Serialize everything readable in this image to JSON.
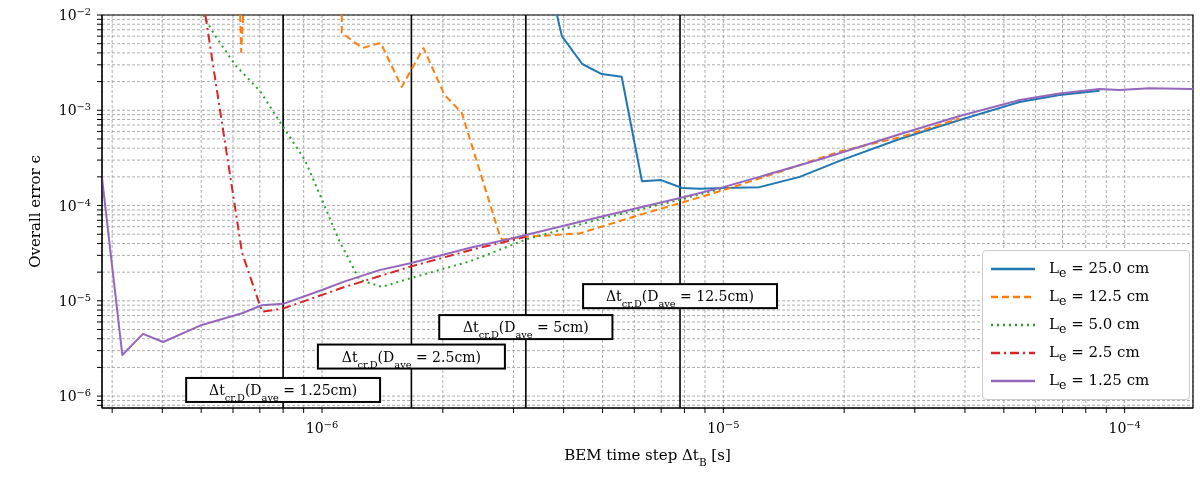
{
  "chart_data": {
    "type": "line",
    "xlabel": "BEM time step Δt$_{B}$ [s]",
    "ylabel": "Overall error ϵ",
    "log": "xy",
    "grid": true,
    "legend": "bottom right",
    "xlim": [
      2.83e-07,
      0.000148
    ],
    "ylim": [
      7.5e-07,
      0.01
    ],
    "xticks": [
      {
        "value": 3e-07,
        "label": null
      },
      {
        "value": 4e-07,
        "label": null
      },
      {
        "value": 5e-07,
        "label": null
      },
      {
        "value": 6e-07,
        "label": null
      },
      {
        "value": 7e-07,
        "label": null
      },
      {
        "value": 8e-07,
        "label": null
      },
      {
        "value": 9e-07,
        "label": null
      },
      {
        "value": 1e-06,
        "label": "10$^{−6}$"
      },
      {
        "value": 2e-06,
        "label": null
      },
      {
        "value": 3e-06,
        "label": null
      },
      {
        "value": 4e-06,
        "label": null
      },
      {
        "value": 5e-06,
        "label": null
      },
      {
        "value": 6e-06,
        "label": null
      },
      {
        "value": 7e-06,
        "label": null
      },
      {
        "value": 8e-06,
        "label": null
      },
      {
        "value": 9e-06,
        "label": null
      },
      {
        "value": 1e-05,
        "label": "10$^{−5}$"
      },
      {
        "value": 2e-05,
        "label": null
      },
      {
        "value": 3e-05,
        "label": null
      },
      {
        "value": 4e-05,
        "label": null
      },
      {
        "value": 5e-05,
        "label": null
      },
      {
        "value": 6e-05,
        "label": null
      },
      {
        "value": 7e-05,
        "label": null
      },
      {
        "value": 8e-05,
        "label": null
      },
      {
        "value": 9e-05,
        "label": null
      },
      {
        "value": 0.0001,
        "label": "10$^{−4}$"
      }
    ],
    "yticks": [
      {
        "value": 8e-07,
        "label": null
      },
      {
        "value": 9e-07,
        "label": null
      },
      {
        "value": 1e-06,
        "label": "10$^{−6}$"
      },
      {
        "value": 2e-06,
        "label": null
      },
      {
        "value": 3e-06,
        "label": null
      },
      {
        "value": 4e-06,
        "label": null
      },
      {
        "value": 5e-06,
        "label": null
      },
      {
        "value": 6e-06,
        "label": null
      },
      {
        "value": 7e-06,
        "label": null
      },
      {
        "value": 8e-06,
        "label": null
      },
      {
        "value": 9e-06,
        "label": null
      },
      {
        "value": 1e-05,
        "label": "10$^{−5}$"
      },
      {
        "value": 2e-05,
        "label": null
      },
      {
        "value": 3e-05,
        "label": null
      },
      {
        "value": 4e-05,
        "label": null
      },
      {
        "value": 5e-05,
        "label": null
      },
      {
        "value": 6e-05,
        "label": null
      },
      {
        "value": 7e-05,
        "label": null
      },
      {
        "value": 8e-05,
        "label": null
      },
      {
        "value": 9e-05,
        "label": null
      },
      {
        "value": 0.0001,
        "label": "10$^{−4}$"
      },
      {
        "value": 0.0002,
        "label": null
      },
      {
        "value": 0.0003,
        "label": null
      },
      {
        "value": 0.0004,
        "label": null
      },
      {
        "value": 0.0005,
        "label": null
      },
      {
        "value": 0.0006,
        "label": null
      },
      {
        "value": 0.0007,
        "label": null
      },
      {
        "value": 0.0008,
        "label": null
      },
      {
        "value": 0.0009,
        "label": null
      },
      {
        "value": 0.001,
        "label": "10$^{−3}$"
      },
      {
        "value": 0.002,
        "label": null
      },
      {
        "value": 0.003,
        "label": null
      },
      {
        "value": 0.004,
        "label": null
      },
      {
        "value": 0.005,
        "label": null
      },
      {
        "value": 0.006,
        "label": null
      },
      {
        "value": 0.007,
        "label": null
      },
      {
        "value": 0.008,
        "label": null
      },
      {
        "value": 0.009,
        "label": null
      },
      {
        "value": 0.01,
        "label": "10$^{−2}$"
      }
    ],
    "series": [
      {
        "name": "L$_{e}$ = 25.0 cm",
        "color": "#1f77b4",
        "line_style": "solid",
        "x": [
          3.85e-06,
          3.96e-06,
          4.45e-06,
          4.98e-06,
          5.58e-06,
          6.27e-06,
          7e-06,
          7.9e-06,
          8.74e-06,
          1e-05,
          1.23e-05,
          1.55e-05,
          1.97e-05,
          2.75e-05,
          3.88e-05,
          5.47e-05,
          6.88e-05,
          8.66e-05
        ],
        "values": [
          0.01,
          0.006,
          0.00306,
          0.0024,
          0.00225,
          0.00018,
          0.000185,
          0.000153,
          0.00015,
          0.000153,
          0.000156,
          0.0002,
          0.0003,
          0.0005,
          0.00079,
          0.00122,
          0.00145,
          0.0016
        ]
      },
      {
        "name": "L$_{e}$ = 12.5 cm",
        "color": "#ff7f0e",
        "line_style": "dashed",
        "x": [
          6.25e-07,
          6.29e-07,
          6.36e-07,
          9e-07,
          1.12e-06,
          1.12e-06,
          1.26e-06,
          1.4e-06,
          1.58e-06,
          1.79e-06,
          2.02e-06,
          2.23e-06,
          2.77e-06,
          2.81e-06,
          3.22e-06,
          4.39e-06,
          6.2e-06,
          7.8e-06,
          1e-05,
          1.38e-05,
          1.95e-05,
          2.75e-05,
          3.88e-05
        ],
        "values": [
          0.01,
          0.0041,
          0.01,
          null,
          0.01,
          0.0065,
          0.0045,
          0.0051,
          0.00176,
          0.0045,
          0.00145,
          0.00094,
          4.9e-05,
          4.4e-05,
          4.7e-05,
          5.1e-05,
          8e-05,
          0.000106,
          0.000145,
          0.000225,
          0.00037,
          0.00052,
          0.00082
        ]
      },
      {
        "name": "L$_{e}$ = 5.0 cm",
        "color": "#2ca02c",
        "line_style": "dotted",
        "x": [
          5.06e-07,
          5.36e-07,
          6.07e-07,
          7e-07,
          8e-07,
          9.07e-07,
          1e-06,
          1.1e-06,
          1.24e-06,
          1.41e-06,
          1.67e-06,
          2.34e-06,
          3.22e-06,
          4.92e-06,
          7.8e-06,
          1e-05
        ],
        "values": [
          0.01,
          0.0065,
          0.003,
          0.0016,
          0.00067,
          0.0003,
          0.000115,
          4.4e-05,
          1.66e-05,
          1.4e-05,
          1.74e-05,
          2.6e-05,
          4.4e-05,
          7.2e-05,
          0.000115,
          0.000152
        ]
      },
      {
        "name": "L$_{e}$ = 2.5 cm",
        "color": "#d62728",
        "line_style": "dashdot",
        "x": [
          5.12e-07,
          6.32e-07,
          7.09e-07,
          8e-07,
          1.14e-06,
          1.67e-06,
          2.34e-06,
          3.22e-06
        ],
        "values": [
          0.01,
          3.2e-05,
          7.7e-06,
          8.3e-06,
          1.4e-05,
          2.3e-05,
          3.4e-05,
          4.7e-05
        ]
      },
      {
        "name": "L$_{e}$ = 1.25 cm",
        "color": "#9467bd",
        "line_style": "solid",
        "x": [
          2.83e-07,
          3.18e-07,
          3.58e-07,
          4.02e-07,
          4.97e-07,
          6.32e-07,
          7.09e-07,
          8e-07,
          1e-06,
          1.14e-06,
          1.39e-06,
          1.67e-06,
          2.34e-06,
          3.22e-06,
          4.92e-06,
          7.8e-06,
          1e-05,
          1.23e-05,
          1.76e-05,
          2.75e-05,
          3.88e-05,
          5.47e-05,
          6.88e-05,
          8.66e-05,
          9.7e-05,
          0.000115,
          0.000148
        ],
        "values": [
          0.000195,
          2.7e-06,
          4.5e-06,
          3.7e-06,
          5.5e-06,
          7.4e-06,
          9e-06,
          9.3e-06,
          1.3e-05,
          1.6e-05,
          2.1e-05,
          2.5e-05,
          3.6e-05,
          4.9e-05,
          7.6e-05,
          0.00012,
          0.000156,
          0.0002,
          0.00031,
          0.00056,
          0.00087,
          0.00128,
          0.0015,
          0.00167,
          0.00163,
          0.0017,
          0.00167
        ]
      }
    ],
    "ref_lines": [
      {
        "axis": "x",
        "value": 8e-07,
        "color": "#000000"
      },
      {
        "axis": "x",
        "value": 1.67e-06,
        "color": "#000000"
      },
      {
        "axis": "x",
        "value": 3.22e-06,
        "color": "#000000"
      },
      {
        "axis": "x",
        "value": 7.8e-06,
        "color": "#000000"
      }
    ],
    "annotations": [
      {
        "text": "Δt$_{cr,D}$(D$_{ave}$ = 1.25cm)",
        "x": 8e-07,
        "y": 1.16e-06
      },
      {
        "text": "Δt$_{cr,D}$(D$_{ave}$ = 2.5cm)",
        "x": 1.67e-06,
        "y": 2.6e-06
      },
      {
        "text": "Δt$_{cr,D}$(D$_{ave}$ = 5cm)",
        "x": 3.22e-06,
        "y": 5.3e-06
      },
      {
        "text": "Δt$_{cr,D}$(D$_{ave}$ = 12.5cm)",
        "x": 7.8e-06,
        "y": 1.12e-05
      }
    ]
  }
}
